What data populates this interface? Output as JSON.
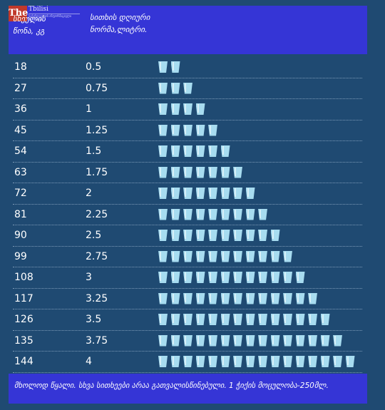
{
  "logo": {
    "mark": "The",
    "name": "Tbilisi",
    "subtitle": "საქართველოს ინფორმაციული პორტალი"
  },
  "header": {
    "col_weight": "სხეულის\nწონა, კგ",
    "col_water": "სითხის დღიური\nნორმა,ლიტრი."
  },
  "footer": {
    "note": "მხოლოდ წყალი. სხვა სითხეები არაა გათვალისწინებული. 1 ჭიქის მოცულობა-250მლ."
  },
  "colors": {
    "background": "#1f4a72",
    "header_band": "#3535d6",
    "glass": "#a7dcf0"
  },
  "icons": {
    "glass": "water-glass-icon"
  },
  "chart_data": {
    "type": "table",
    "columns": [
      "სხეულის წონა, კგ",
      "სითხის დღიური ნორმა,ლიტრი."
    ],
    "rows": [
      {
        "weight": "18",
        "liters": "0.5",
        "glasses": 2
      },
      {
        "weight": "27",
        "liters": "0.75",
        "glasses": 3
      },
      {
        "weight": "36",
        "liters": "1",
        "glasses": 4
      },
      {
        "weight": "45",
        "liters": "1.25",
        "glasses": 5
      },
      {
        "weight": "54",
        "liters": "1.5",
        "glasses": 6
      },
      {
        "weight": "63",
        "liters": "1.75",
        "glasses": 7
      },
      {
        "weight": "72",
        "liters": "2",
        "glasses": 8
      },
      {
        "weight": "81",
        "liters": "2.25",
        "glasses": 9
      },
      {
        "weight": "90",
        "liters": "2.5",
        "glasses": 10
      },
      {
        "weight": "99",
        "liters": "2.75",
        "glasses": 11
      },
      {
        "weight": "108",
        "liters": "3",
        "glasses": 12
      },
      {
        "weight": "117",
        "liters": "3.25",
        "glasses": 13
      },
      {
        "weight": "126",
        "liters": "3.5",
        "glasses": 14
      },
      {
        "weight": "135",
        "liters": "3.75",
        "glasses": 15
      },
      {
        "weight": "144",
        "liters": "4",
        "glasses": 16
      }
    ]
  }
}
